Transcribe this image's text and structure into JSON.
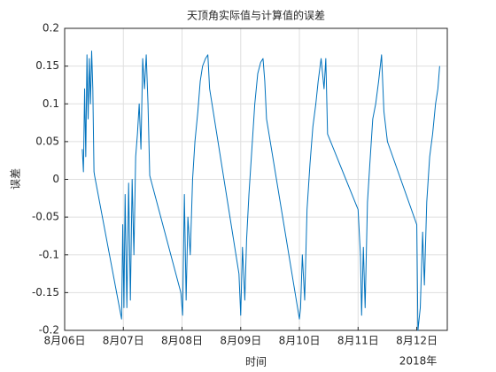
{
  "chart_data": {
    "type": "line",
    "title": "天顶角实际值与计算值的误差",
    "xlabel": "时间",
    "ylabel": "误差",
    "x_secondary_label": "2018年",
    "color": "#0072BD",
    "grid": true,
    "xlim": [
      0,
      6.52
    ],
    "ylim": [
      -0.2,
      0.2
    ],
    "xticks": [
      {
        "value": 0,
        "label": "8月06日"
      },
      {
        "value": 1,
        "label": "8月07日"
      },
      {
        "value": 2,
        "label": "8月08日"
      },
      {
        "value": 3,
        "label": "8月09日"
      },
      {
        "value": 4,
        "label": "8月10日"
      },
      {
        "value": 5,
        "label": "8月11日"
      },
      {
        "value": 6,
        "label": "8月12日"
      }
    ],
    "yticks": [
      -0.2,
      -0.15,
      -0.1,
      -0.05,
      0,
      0.05,
      0.1,
      0.15,
      0.2
    ],
    "x": [
      0.3,
      0.32,
      0.34,
      0.36,
      0.38,
      0.4,
      0.42,
      0.44,
      0.46,
      0.48,
      0.5,
      0.51,
      0.97,
      0.99,
      1.01,
      1.03,
      1.06,
      1.09,
      1.12,
      1.15,
      1.18,
      1.21,
      1.24,
      1.27,
      1.3,
      1.33,
      1.36,
      1.39,
      1.42,
      1.45,
      1.98,
      2.01,
      2.04,
      2.07,
      2.1,
      2.14,
      2.18,
      2.22,
      2.27,
      2.31,
      2.35,
      2.4,
      2.44,
      2.47,
      2.97,
      3.0,
      3.03,
      3.07,
      3.1,
      3.14,
      3.19,
      3.24,
      3.29,
      3.34,
      3.38,
      3.41,
      3.44,
      4.0,
      4.02,
      4.05,
      4.09,
      4.13,
      4.18,
      4.23,
      4.28,
      4.32,
      4.37,
      4.42,
      4.45,
      4.48,
      5.0,
      5.04,
      5.06,
      5.09,
      5.12,
      5.16,
      5.2,
      5.25,
      5.3,
      5.35,
      5.4,
      5.44,
      5.5,
      6.0,
      6.02,
      6.06,
      6.1,
      6.13,
      6.17,
      6.22,
      6.27,
      6.32,
      6.36,
      6.39
    ],
    "values": [
      0.04,
      0.01,
      0.12,
      0.03,
      0.165,
      0.08,
      0.16,
      0.1,
      0.17,
      0.12,
      0.01,
      0.005,
      -0.185,
      -0.06,
      -0.17,
      -0.02,
      -0.17,
      -0.005,
      -0.16,
      0.0,
      -0.1,
      0.03,
      0.06,
      0.1,
      0.04,
      0.16,
      0.12,
      0.165,
      0.1,
      0.005,
      -0.15,
      -0.18,
      -0.02,
      -0.16,
      -0.05,
      -0.1,
      0.0,
      0.05,
      0.09,
      0.13,
      0.15,
      0.16,
      0.165,
      0.12,
      -0.125,
      -0.18,
      -0.09,
      -0.16,
      -0.08,
      -0.02,
      0.04,
      0.1,
      0.14,
      0.155,
      0.16,
      0.13,
      0.08,
      -0.185,
      -0.17,
      -0.1,
      -0.16,
      -0.04,
      0.02,
      0.07,
      0.1,
      0.13,
      0.16,
      0.12,
      0.16,
      0.06,
      -0.04,
      -0.1,
      -0.18,
      -0.09,
      -0.17,
      -0.03,
      0.02,
      0.08,
      0.1,
      0.13,
      0.165,
      0.09,
      0.05,
      -0.06,
      -0.2,
      -0.17,
      -0.07,
      -0.14,
      -0.03,
      0.03,
      0.06,
      0.1,
      0.12,
      0.15
    ]
  }
}
